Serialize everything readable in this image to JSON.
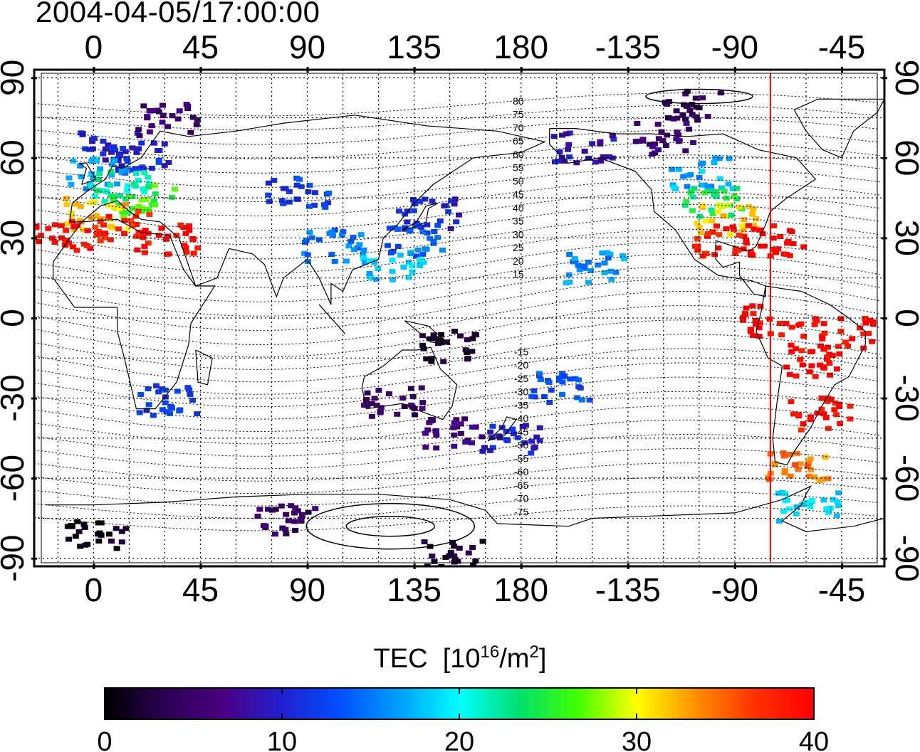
{
  "title": "2004-04-05/17:00:00",
  "map": {
    "lon_ticks": [
      {
        "lon": 0,
        "label": "0"
      },
      {
        "lon": 45,
        "label": "45"
      },
      {
        "lon": 90,
        "label": "90"
      },
      {
        "lon": 135,
        "label": "135"
      },
      {
        "lon": 180,
        "label": "180"
      },
      {
        "lon": 225,
        "label": "-135"
      },
      {
        "lon": 270,
        "label": "-90"
      },
      {
        "lon": 315,
        "label": "-45"
      }
    ],
    "lat_ticks": [
      {
        "lat": 90,
        "label": "90"
      },
      {
        "lat": 60,
        "label": "60"
      },
      {
        "lat": 30,
        "label": "30"
      },
      {
        "lat": 0,
        "label": "0"
      },
      {
        "lat": -30,
        "label": "-30"
      },
      {
        "lat": -60,
        "label": "-60"
      },
      {
        "lat": -90,
        "label": "-90"
      }
    ],
    "lon_range": [
      -25,
      333
    ],
    "lat_range": [
      -93,
      93
    ],
    "grid": "dotted, every 15 degrees",
    "noon_meridian_lon": -75,
    "noon_meridian_color": "#ff0000",
    "magnetic_latitude_labels_north": [
      "80",
      "75",
      "70",
      "65",
      "60",
      "55",
      "50",
      "45",
      "40",
      "35",
      "30",
      "25",
      "20",
      "15"
    ],
    "magnetic_latitude_labels_south": [
      "-15",
      "-20",
      "-25",
      "-30",
      "-35",
      "-40",
      "-45",
      "-50",
      "-55",
      "-60",
      "-65",
      "-70",
      "-75"
    ]
  },
  "colorbar": {
    "title": "TEC",
    "unit_prefix": "[10",
    "unit_exp1": "16",
    "unit_mid": "/m",
    "unit_exp2": "2",
    "unit_suffix": "]",
    "min": 0,
    "max": 40,
    "tick_labels": [
      "0",
      "10",
      "20",
      "30",
      "40"
    ],
    "colors": [
      "#000000",
      "#2a0050",
      "#4b0082",
      "#2020d0",
      "#0050ff",
      "#00a0ff",
      "#00ffff",
      "#00e070",
      "#40ff00",
      "#ffff00",
      "#ff9000",
      "#ff3000",
      "#ff0000"
    ]
  },
  "tec_regions": [
    {
      "lon": 5,
      "lat": 65,
      "value": 10
    },
    {
      "lon": 20,
      "lat": 62,
      "value": 11
    },
    {
      "lon": 0,
      "lat": 55,
      "value": 17
    },
    {
      "lon": 10,
      "lat": 50,
      "value": 22
    },
    {
      "lon": 20,
      "lat": 45,
      "value": 26
    },
    {
      "lon": 0,
      "lat": 40,
      "value": 32
    },
    {
      "lon": 10,
      "lat": 35,
      "value": 38
    },
    {
      "lon": 30,
      "lat": 30,
      "value": 40
    },
    {
      "lon": -15,
      "lat": 32,
      "value": 39
    },
    {
      "lon": 85,
      "lat": 48,
      "value": 12
    },
    {
      "lon": 100,
      "lat": 28,
      "value": 15
    },
    {
      "lon": 140,
      "lat": 40,
      "value": 10
    },
    {
      "lon": 135,
      "lat": 30,
      "value": 14
    },
    {
      "lon": 125,
      "lat": 20,
      "value": 18
    },
    {
      "lon": 205,
      "lat": 65,
      "value": 9
    },
    {
      "lon": 240,
      "lat": 68,
      "value": 6
    },
    {
      "lon": 250,
      "lat": 80,
      "value": 4
    },
    {
      "lon": 255,
      "lat": 55,
      "value": 17
    },
    {
      "lon": 260,
      "lat": 45,
      "value": 24
    },
    {
      "lon": 265,
      "lat": 38,
      "value": 31
    },
    {
      "lon": 265,
      "lat": 30,
      "value": 38
    },
    {
      "lon": 285,
      "lat": 30,
      "value": 40
    },
    {
      "lon": 285,
      "lat": 0,
      "value": 40
    },
    {
      "lon": 300,
      "lat": -15,
      "value": 40
    },
    {
      "lon": 315,
      "lat": -5,
      "value": 40
    },
    {
      "lon": 305,
      "lat": -35,
      "value": 39
    },
    {
      "lon": 295,
      "lat": -55,
      "value": 34
    },
    {
      "lon": 300,
      "lat": -70,
      "value": 19
    },
    {
      "lon": 175,
      "lat": -45,
      "value": 10
    },
    {
      "lon": 150,
      "lat": -42,
      "value": 6
    },
    {
      "lon": 125,
      "lat": -30,
      "value": 5
    },
    {
      "lon": 150,
      "lat": -10,
      "value": 2
    },
    {
      "lon": 30,
      "lat": -30,
      "value": 12
    },
    {
      "lon": 80,
      "lat": -75,
      "value": 4
    },
    {
      "lon": 0,
      "lat": -80,
      "value": 1
    },
    {
      "lon": 150,
      "lat": -88,
      "value": 2
    },
    {
      "lon": 30,
      "lat": 75,
      "value": 6
    },
    {
      "lon": 210,
      "lat": 20,
      "value": 16
    },
    {
      "lon": 195,
      "lat": -25,
      "value": 13
    }
  ]
}
